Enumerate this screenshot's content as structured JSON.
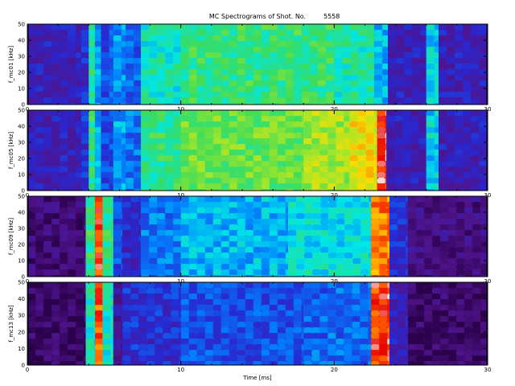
{
  "chart_data": {
    "type": "heatmap",
    "title": "MC Spectrograms of Shot. No.",
    "shot_number": "5558",
    "xlabel": "Time [ms]",
    "xlim": [
      0,
      30
    ],
    "x_ticks": [
      "0",
      "10",
      "20",
      "30"
    ],
    "ylim": [
      0,
      50
    ],
    "y_ticks": [
      "0",
      "10",
      "20",
      "30",
      "40",
      "50"
    ],
    "colormap": "rainbow (purple-blue-cyan-green-yellow-red-white)",
    "panels": [
      {
        "ylabel": "f_mc01 [kHz]",
        "bands": [
          {
            "x": [
              0,
              3.5
            ],
            "level": 0.2
          },
          {
            "x": [
              3.5,
              4.0
            ],
            "level": 0.25
          },
          {
            "x": [
              4.0,
              4.4
            ],
            "level": 0.55
          },
          {
            "x": [
              4.4,
              4.8
            ],
            "level": 0.4
          },
          {
            "x": [
              4.8,
              5.6
            ],
            "level": 0.3
          },
          {
            "x": [
              5.6,
              6.4
            ],
            "level": 0.38
          },
          {
            "x": [
              6.4,
              7.4
            ],
            "level": 0.33
          },
          {
            "x": [
              7.4,
              10
            ],
            "level": 0.5
          },
          {
            "x": [
              10,
              20
            ],
            "level": 0.56
          },
          {
            "x": [
              20,
              22.6
            ],
            "level": 0.52
          },
          {
            "x": [
              22.6,
              23.5
            ],
            "level": 0.42
          },
          {
            "x": [
              23.5,
              26.0
            ],
            "level": 0.2
          },
          {
            "x": [
              26.0,
              26.8
            ],
            "level": 0.45
          },
          {
            "x": [
              26.8,
              30
            ],
            "level": 0.2
          }
        ]
      },
      {
        "ylabel": "f_mc05 [kHz]",
        "bands": [
          {
            "x": [
              0,
              3.5
            ],
            "level": 0.2
          },
          {
            "x": [
              3.5,
              4.0
            ],
            "level": 0.25
          },
          {
            "x": [
              4.0,
              4.4
            ],
            "level": 0.55
          },
          {
            "x": [
              4.4,
              4.8
            ],
            "level": 0.4
          },
          {
            "x": [
              4.8,
              5.6
            ],
            "level": 0.3
          },
          {
            "x": [
              5.6,
              6.4
            ],
            "level": 0.4
          },
          {
            "x": [
              6.4,
              7.4
            ],
            "level": 0.35
          },
          {
            "x": [
              7.4,
              10
            ],
            "level": 0.55
          },
          {
            "x": [
              10,
              18
            ],
            "level": 0.62
          },
          {
            "x": [
              18,
              21
            ],
            "level": 0.68
          },
          {
            "x": [
              21,
              22.8
            ],
            "level": 0.75
          },
          {
            "x": [
              22.8,
              23.4
            ],
            "level": 0.95
          },
          {
            "x": [
              23.4,
              26.0
            ],
            "level": 0.2
          },
          {
            "x": [
              26.0,
              26.8
            ],
            "level": 0.45
          },
          {
            "x": [
              26.8,
              30
            ],
            "level": 0.2
          }
        ]
      },
      {
        "ylabel": "f_mc09 [kHz]",
        "bands": [
          {
            "x": [
              0,
              3.8
            ],
            "level": 0.08
          },
          {
            "x": [
              3.8,
              4.4
            ],
            "level": 0.55
          },
          {
            "x": [
              4.4,
              4.9
            ],
            "level": 0.9
          },
          {
            "x": [
              4.9,
              5.6
            ],
            "level": 0.55
          },
          {
            "x": [
              5.6,
              6.2
            ],
            "level": 0.3
          },
          {
            "x": [
              6.2,
              7.4
            ],
            "level": 0.22
          },
          {
            "x": [
              7.4,
              10
            ],
            "level": 0.35
          },
          {
            "x": [
              10,
              17
            ],
            "level": 0.42
          },
          {
            "x": [
              17,
              22.4
            ],
            "level": 0.47
          },
          {
            "x": [
              22.4,
              23.6
            ],
            "level": 0.85
          },
          {
            "x": [
              23.6,
              24.8
            ],
            "level": 0.25
          },
          {
            "x": [
              24.8,
              30
            ],
            "level": 0.1
          }
        ]
      },
      {
        "ylabel": "f_mc13 [kHz]",
        "bands": [
          {
            "x": [
              0,
              3.8
            ],
            "level": 0.05
          },
          {
            "x": [
              3.8,
              4.4
            ],
            "level": 0.5
          },
          {
            "x": [
              4.4,
              4.9
            ],
            "level": 0.88
          },
          {
            "x": [
              4.9,
              5.6
            ],
            "level": 0.5
          },
          {
            "x": [
              5.6,
              6.2
            ],
            "level": 0.15
          },
          {
            "x": [
              6.2,
              10
            ],
            "level": 0.25
          },
          {
            "x": [
              10,
              18
            ],
            "level": 0.3
          },
          {
            "x": [
              18,
              22.4
            ],
            "level": 0.33
          },
          {
            "x": [
              22.4,
              23.6
            ],
            "level": 0.92
          },
          {
            "x": [
              23.6,
              24.8
            ],
            "level": 0.2
          },
          {
            "x": [
              24.8,
              30
            ],
            "level": 0.06
          }
        ]
      }
    ]
  }
}
